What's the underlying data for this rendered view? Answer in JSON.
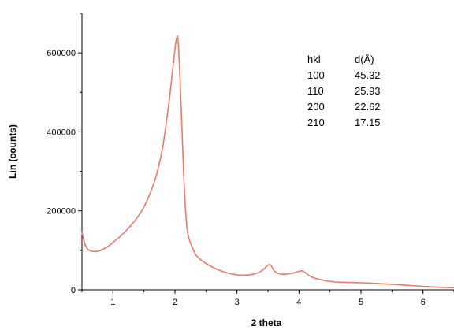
{
  "chart_data": {
    "type": "line",
    "title": "",
    "xlabel": "2 theta",
    "ylabel": "Lin (counts)",
    "xlim": [
      0.5,
      6.5
    ],
    "ylim": [
      0,
      700000
    ],
    "grid": false,
    "colors": {
      "series": "#f07868",
      "axis": "#000000"
    },
    "x_ticks": [
      1,
      2,
      3,
      4,
      5,
      6
    ],
    "y_ticks": [
      0,
      200000,
      400000,
      600000
    ],
    "series": [
      {
        "name": "",
        "x": [
          0.5,
          0.55,
          0.6,
          0.7,
          0.8,
          0.9,
          1.0,
          1.1,
          1.2,
          1.3,
          1.4,
          1.5,
          1.6,
          1.7,
          1.8,
          1.9,
          1.95,
          2.0,
          2.03,
          2.05,
          2.08,
          2.12,
          2.15,
          2.2,
          2.3,
          2.4,
          2.6,
          2.8,
          3.0,
          3.2,
          3.35,
          3.45,
          3.5,
          3.55,
          3.6,
          3.7,
          3.8,
          3.9,
          4.0,
          4.05,
          4.1,
          4.2,
          4.4,
          4.6,
          5.0,
          5.3,
          5.5,
          5.8,
          6.1,
          6.5
        ],
        "y": [
          145000,
          115000,
          102000,
          97000,
          100000,
          108000,
          120000,
          133000,
          148000,
          165000,
          185000,
          210000,
          245000,
          290000,
          360000,
          470000,
          540000,
          610000,
          640000,
          630000,
          540000,
          380000,
          260000,
          150000,
          100000,
          78000,
          58000,
          45000,
          38000,
          38000,
          44000,
          55000,
          63000,
          62000,
          48000,
          40000,
          40000,
          42000,
          47000,
          48000,
          44000,
          33000,
          24000,
          20000,
          18000,
          16000,
          14000,
          11000,
          8000,
          5000
        ]
      }
    ]
  },
  "annotation_table": {
    "headers": [
      "hkl",
      "d(Å)"
    ],
    "rows": [
      [
        "100",
        "45.32"
      ],
      [
        "110",
        "25.93"
      ],
      [
        "200",
        "22.62"
      ],
      [
        "210",
        "17.15"
      ]
    ]
  }
}
